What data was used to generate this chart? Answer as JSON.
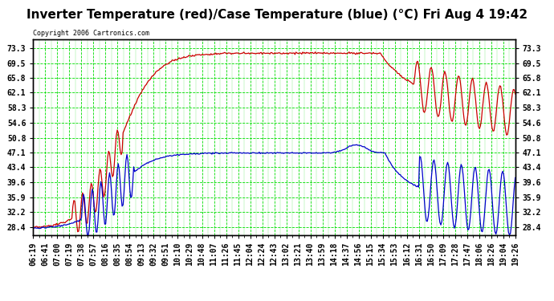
{
  "title": "Inverter Temperature (red)/Case Temperature (blue) (°C) Fri Aug 4 19:42",
  "copyright": "Copyright 2006 Cartronics.com",
  "outer_bg": "#ffffff",
  "plot_bg": "#ffffff",
  "grid_color": "#00dd00",
  "yticks": [
    28.4,
    32.2,
    35.9,
    39.6,
    43.4,
    47.1,
    50.8,
    54.6,
    58.3,
    62.1,
    65.8,
    69.5,
    73.3
  ],
  "ylim": [
    26.5,
    75.5
  ],
  "xtick_labels": [
    "06:19",
    "06:41",
    "07:00",
    "07:19",
    "07:38",
    "07:57",
    "08:16",
    "08:35",
    "08:54",
    "09:13",
    "09:32",
    "09:51",
    "10:10",
    "10:29",
    "10:48",
    "11:07",
    "11:26",
    "11:45",
    "12:04",
    "12:24",
    "12:43",
    "13:02",
    "13:21",
    "13:40",
    "13:59",
    "14:18",
    "14:37",
    "14:56",
    "15:15",
    "15:34",
    "15:53",
    "16:12",
    "16:31",
    "16:50",
    "17:09",
    "17:28",
    "17:47",
    "18:06",
    "18:26",
    "19:04",
    "19:26"
  ],
  "red_color": "#cc0000",
  "blue_color": "#0000cc",
  "title_fontsize": 11,
  "tick_fontsize": 7,
  "copyright_fontsize": 6
}
